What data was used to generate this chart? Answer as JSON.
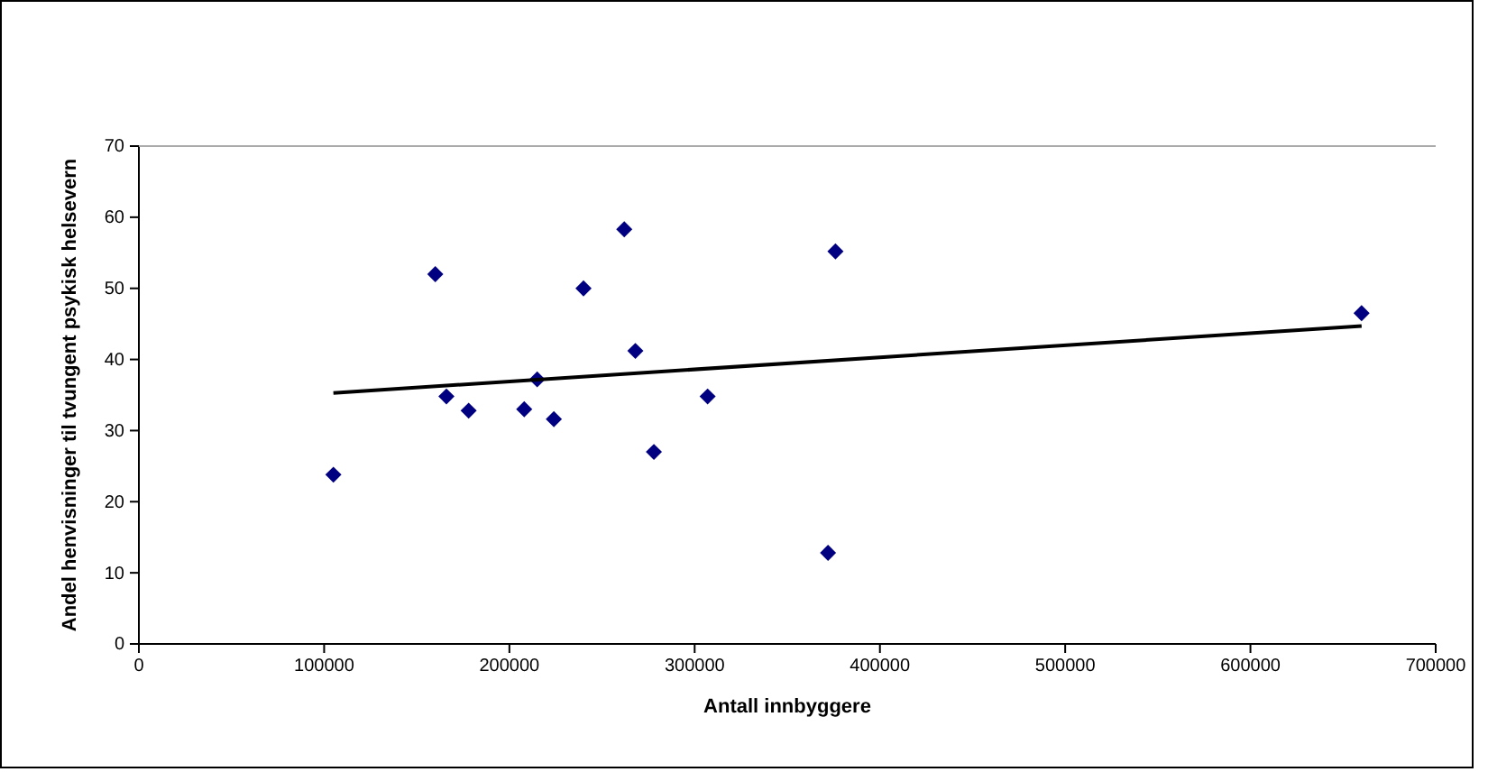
{
  "chart_data": {
    "type": "scatter",
    "xlabel": "Antall innbyggere",
    "ylabel": "Andel henvisninger til tvungent psykisk helsevern",
    "xlim": [
      0,
      700000
    ],
    "xticks": [
      0,
      100000,
      200000,
      300000,
      400000,
      500000,
      600000,
      700000
    ],
    "ylim": [
      0,
      70
    ],
    "yticks": [
      0,
      10,
      20,
      30,
      40,
      50,
      60,
      70
    ],
    "series": [
      {
        "marker": "diamond",
        "color": "#000080",
        "x": [
          105000,
          160000,
          166000,
          178000,
          208000,
          215000,
          224000,
          240000,
          262000,
          268000,
          278000,
          307000,
          372000,
          376000,
          660000
        ],
        "values": [
          23.8,
          52,
          34.8,
          32.8,
          33,
          37.2,
          31.6,
          50,
          58.3,
          41.2,
          27,
          34.8,
          12.8,
          55.2,
          46.5
        ]
      },
      {
        "type": "line",
        "color": "#000000",
        "x": [
          105000,
          660000
        ],
        "values": [
          35.3,
          44.7
        ]
      }
    ]
  }
}
